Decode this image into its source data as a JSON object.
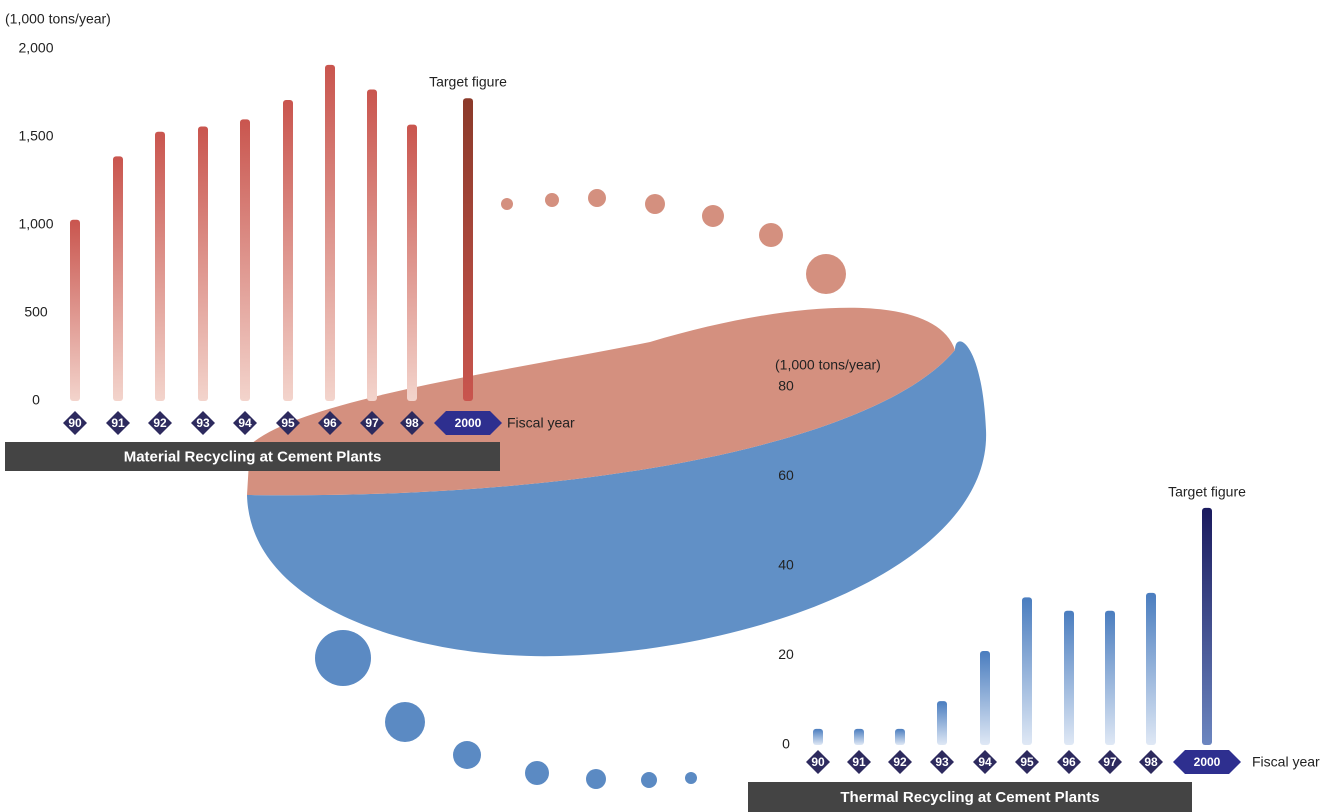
{
  "chart_data": [
    {
      "type": "bar",
      "title": "Material Recycling at Cement Plants",
      "y_label": "(1,000 tons/year)",
      "x_label": "Fiscal year",
      "annotation": "Target figure",
      "categories": [
        "90",
        "91",
        "92",
        "93",
        "94",
        "95",
        "96",
        "97",
        "98",
        "2000"
      ],
      "values": [
        1030,
        1390,
        1530,
        1560,
        1600,
        1710,
        1910,
        1770,
        1570,
        1720
      ],
      "color": "#c9554e",
      "target_color": "#8b3a2a",
      "ylim": [
        0,
        2000
      ],
      "yticks": [
        0,
        500,
        {
          "value": 1000,
          "label": "1,000"
        },
        {
          "value": 1500,
          "label": "1,500"
        },
        {
          "value": 2000,
          "label": "2,000"
        }
      ]
    },
    {
      "type": "bar",
      "title": "Thermal Recycling at Cement Plants",
      "y_label": "(1,000 tons/year)",
      "x_label": "Fiscal year",
      "annotation": "Target figure",
      "categories": [
        "90",
        "91",
        "92",
        "93",
        "94",
        "95",
        "96",
        "97",
        "98",
        "2000"
      ],
      "values": [
        3.6,
        3.6,
        3.6,
        9.8,
        21,
        33,
        30,
        30,
        34,
        53
      ],
      "color": "#4a7dbf",
      "target_color": "#1a1a5e",
      "ylim": [
        0,
        80
      ],
      "yticks": [
        0,
        20,
        40,
        60,
        80
      ]
    }
  ]
}
